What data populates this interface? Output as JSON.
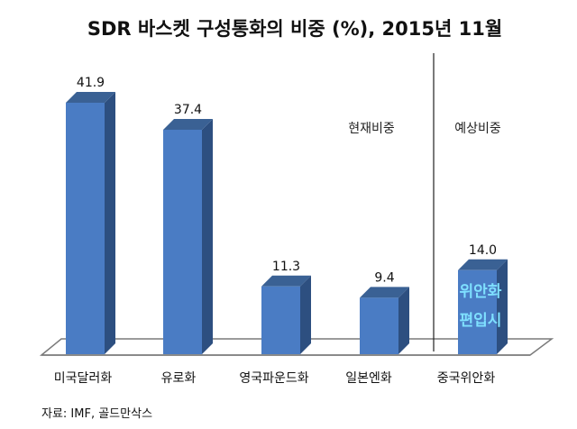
{
  "chart_data": {
    "type": "bar",
    "title": "SDR 바스켓 구성통화의 비중 (%), 2015년 11월",
    "categories": [
      "미국달러화",
      "유로화",
      "영국파운드화",
      "일본엔화",
      "중국위안화"
    ],
    "values": [
      41.9,
      37.4,
      11.3,
      9.4,
      14.0
    ],
    "value_labels": [
      "41.9",
      "37.4",
      "11.3",
      "9.4",
      "14.0"
    ],
    "ylim": [
      0,
      45
    ],
    "grid": false,
    "legend": "none",
    "style": "3d-column",
    "annotations": {
      "current_label": "현재비중",
      "expected_label": "예상비중",
      "yuan_inbar_line1": "위안화",
      "yuan_inbar_line2": "편입시"
    },
    "source": "자료: IMF, 골드만삭스",
    "colors": {
      "bar_front": "#4a7cc4",
      "bar_side": "#2d4f80",
      "bar_top": "#3a6194",
      "floor": "#ffffff",
      "floor_edge": "#7a7a7a",
      "divider": "#222222",
      "inbar_text": "#7fe0ff"
    }
  }
}
